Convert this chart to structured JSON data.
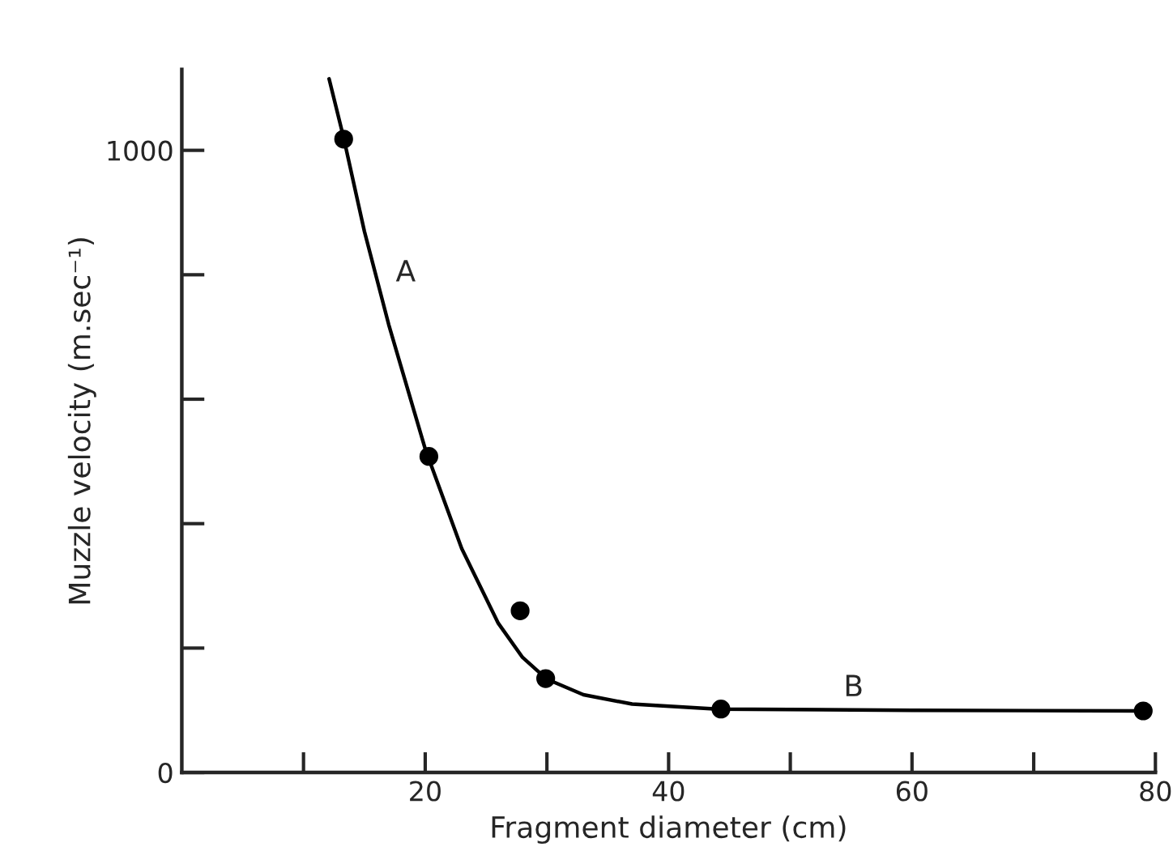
{
  "chart_data": {
    "type": "scatter",
    "xlabel": "Fragment diameter (cm)",
    "ylabel": "Muzzle velocity (m.sec⁻¹)",
    "xlim": [
      0,
      80
    ],
    "ylim": [
      0,
      1130
    ],
    "xticks": [
      {
        "value": 10,
        "label": null
      },
      20,
      {
        "value": 30,
        "label": null
      },
      40,
      {
        "value": 50,
        "label": null
      },
      60,
      {
        "value": 70,
        "label": null
      },
      80
    ],
    "yticks": [
      0,
      {
        "value": 200,
        "label": null
      },
      {
        "value": 400,
        "label": null
      },
      {
        "value": 600,
        "label": null
      },
      {
        "value": 800,
        "label": null
      },
      1000
    ],
    "grid": false,
    "legend": false,
    "series": [
      {
        "color": "#000000",
        "marker": "circle",
        "x": [
          13.3,
          20.3,
          27.8,
          29.9,
          44.3,
          79
        ],
        "values": [
          1018,
          508,
          260,
          151,
          102,
          99
        ]
      },
      {
        "type": "line",
        "color": "#000000",
        "marker": "none",
        "line_style": "solid",
        "x": [
          12.1,
          13.3,
          15,
          17,
          20,
          23,
          26,
          28,
          30,
          33,
          37,
          44,
          60,
          79
        ],
        "values": [
          1115,
          1020,
          870,
          720,
          520,
          360,
          240,
          185,
          150,
          125,
          110,
          102,
          100,
          99
        ]
      }
    ],
    "annotations": [
      "A",
      "B"
    ]
  }
}
